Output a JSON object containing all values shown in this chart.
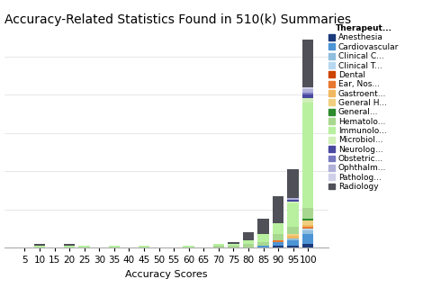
{
  "title": "Accuracy-Related Statistics Found in 510(k) Summaries",
  "xlabel": "Accuracy Scores",
  "categories": [
    "5",
    "10",
    "15",
    "20",
    "25",
    "30",
    "35",
    "40",
    "45",
    "50",
    "55",
    "60",
    "65",
    "70",
    "75",
    "80",
    "85",
    "90",
    "95",
    "100"
  ],
  "therapeutic_areas": [
    "Anesthesia",
    "Cardiovascular",
    "Clinical C...",
    "Clinical T...",
    "Dental",
    "Ear, Nos...",
    "Gastroent...",
    "General H...",
    "General...",
    "Hematolo...",
    "Immunolo...",
    "Microbiol...",
    "Neurolog...",
    "Obstetric...",
    "Ophthalm...",
    "Patholog...",
    "Radiology"
  ],
  "colors": [
    "#1a3a7a",
    "#4d94d4",
    "#90bede",
    "#b8d8f0",
    "#cc4400",
    "#e87830",
    "#f0b860",
    "#f0d080",
    "#2d8a2d",
    "#a8d890",
    "#b8f0a0",
    "#d0f0b8",
    "#4848a0",
    "#7878c0",
    "#b0b0d8",
    "#d0d0e8",
    "#505058"
  ],
  "data": {
    "Anesthesia": [
      0,
      0,
      0,
      0,
      0,
      0,
      0,
      0,
      0,
      0,
      0,
      0,
      0,
      0,
      0,
      0,
      0,
      1,
      1,
      2
    ],
    "Cardiovascular": [
      0,
      0,
      0,
      0,
      0,
      0,
      0,
      0,
      0,
      0,
      0,
      0,
      0,
      0,
      0,
      0,
      1,
      2,
      3,
      5
    ],
    "Clinical C...": [
      0,
      0,
      0,
      0,
      0,
      0,
      0,
      0,
      0,
      0,
      0,
      0,
      0,
      0,
      0,
      0,
      0,
      0,
      1,
      2
    ],
    "Clinical T...": [
      0,
      0,
      0,
      0,
      0,
      0,
      0,
      0,
      0,
      0,
      0,
      0,
      0,
      0,
      0,
      0,
      0,
      0,
      0,
      1
    ],
    "Dental": [
      0,
      0,
      0,
      0,
      0,
      0,
      0,
      0,
      0,
      0,
      0,
      0,
      0,
      0,
      0,
      0,
      0,
      0,
      0,
      0
    ],
    "Ear, Nos...": [
      0,
      0,
      0,
      0,
      0,
      0,
      0,
      0,
      0,
      0,
      0,
      0,
      0,
      0,
      0,
      0,
      0,
      1,
      0,
      1
    ],
    "Gastroent...": [
      0,
      0,
      0,
      0,
      0,
      0,
      0,
      0,
      0,
      0,
      0,
      0,
      0,
      0,
      0,
      0,
      0,
      0,
      1,
      1
    ],
    "General H...": [
      0,
      0,
      0,
      0,
      0,
      0,
      0,
      0,
      0,
      0,
      0,
      0,
      0,
      0,
      0,
      0,
      0,
      0,
      1,
      2
    ],
    "General...": [
      0,
      0,
      0,
      0,
      0,
      0,
      0,
      0,
      0,
      0,
      0,
      0,
      0,
      0,
      0,
      0,
      0,
      0,
      0,
      1
    ],
    "Hematolo...": [
      0,
      0,
      0,
      0,
      0,
      0,
      0,
      0,
      0,
      0,
      0,
      0,
      0,
      1,
      1,
      2,
      2,
      3,
      4,
      6
    ],
    "Immunolo...": [
      0,
      1,
      0,
      1,
      1,
      0,
      1,
      0,
      1,
      0,
      0,
      1,
      0,
      1,
      1,
      2,
      4,
      6,
      12,
      55
    ],
    "Microbiol...": [
      0,
      0,
      0,
      0,
      0,
      0,
      0,
      0,
      0,
      0,
      0,
      0,
      0,
      0,
      0,
      0,
      0,
      0,
      1,
      2
    ],
    "Neurolog...": [
      0,
      0,
      0,
      0,
      0,
      0,
      0,
      0,
      0,
      0,
      0,
      0,
      0,
      0,
      0,
      0,
      0,
      0,
      1,
      2
    ],
    "Obstetric...": [
      0,
      0,
      0,
      0,
      0,
      0,
      0,
      0,
      0,
      0,
      0,
      0,
      0,
      0,
      0,
      0,
      0,
      0,
      0,
      1
    ],
    "Ophthalm...": [
      0,
      0,
      0,
      0,
      0,
      0,
      0,
      0,
      0,
      0,
      0,
      0,
      0,
      0,
      0,
      0,
      0,
      0,
      1,
      2
    ],
    "Patholog...": [
      0,
      0,
      0,
      0,
      0,
      0,
      0,
      0,
      0,
      0,
      0,
      0,
      0,
      0,
      0,
      0,
      0,
      0,
      0,
      1
    ],
    "Radiology": [
      0,
      1,
      0,
      1,
      0,
      0,
      0,
      0,
      0,
      0,
      0,
      0,
      0,
      0,
      1,
      4,
      8,
      14,
      15,
      25
    ]
  },
  "legend_title": "Therapeut...",
  "title_fontsize": 10,
  "axis_fontsize": 8,
  "tick_fontsize": 7.5,
  "legend_fontsize": 6.5
}
